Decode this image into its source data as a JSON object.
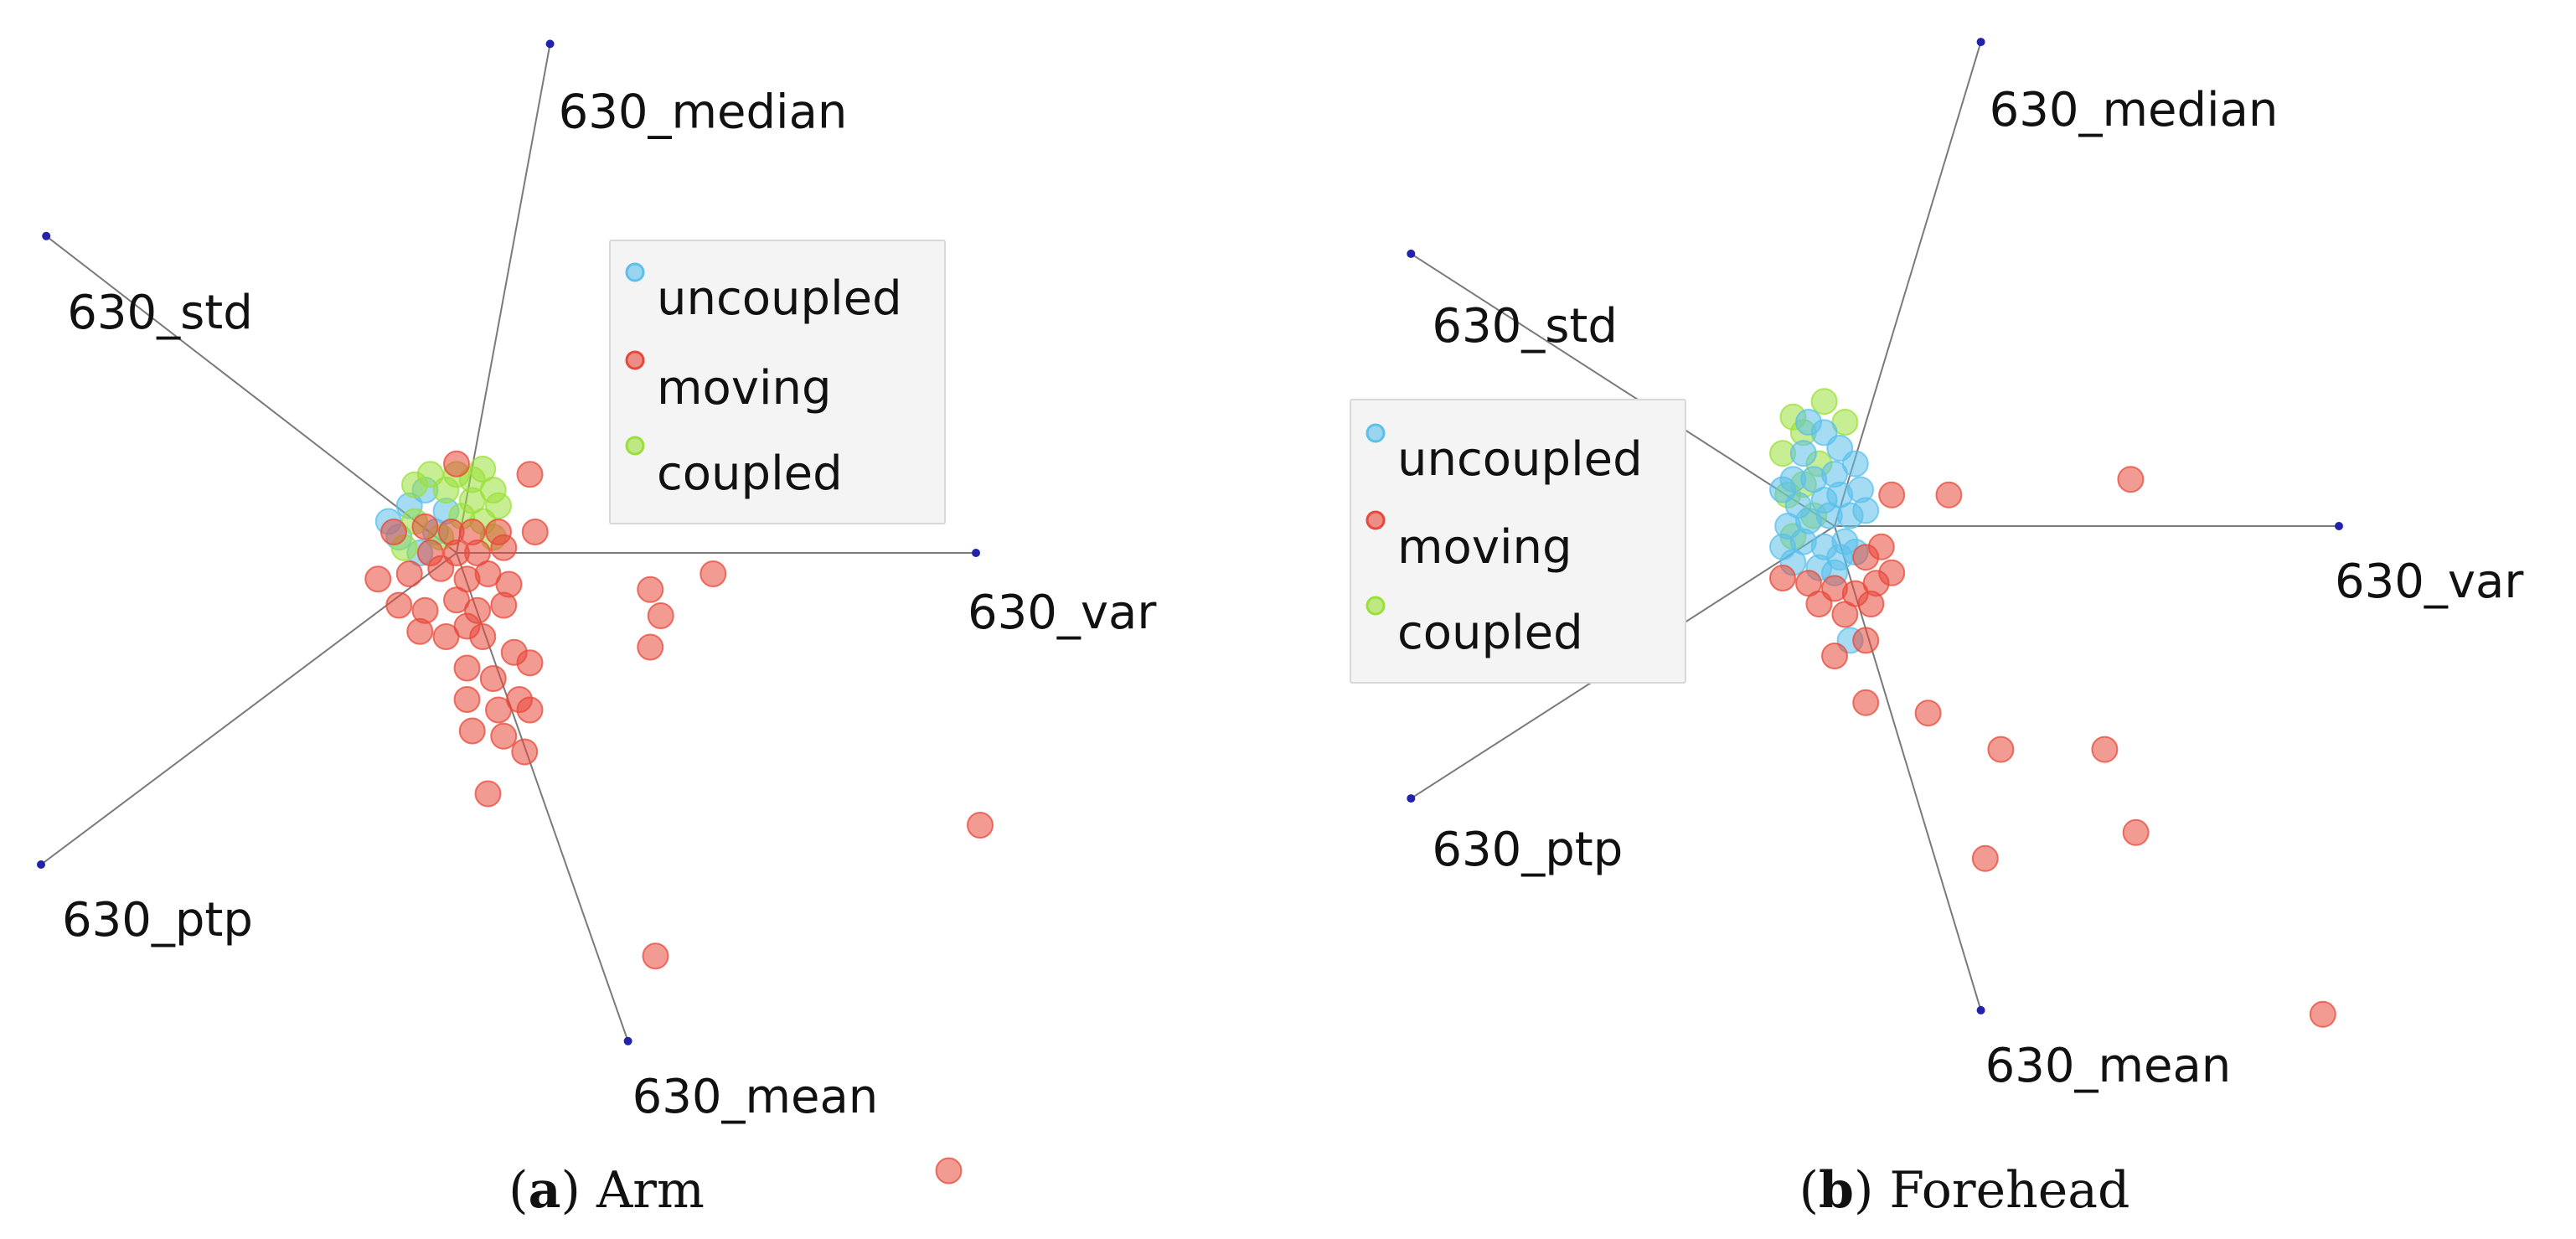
{
  "colors": {
    "uncoupled": "#5bc0eb",
    "moving": "#e8483a",
    "coupled": "#9be03a",
    "axis": "#7a7a7a",
    "axis_tip": "#2222aa",
    "legend_bg": "#f4f4f4",
    "legend_border": "#d8d8d8"
  },
  "chart_data": [
    {
      "type": "scatter",
      "title": "Arm",
      "caption_letter": "a",
      "plot_kind": "radviz",
      "axes": [
        {
          "label": "630_median",
          "direction": [
            0.18,
            -0.98
          ]
        },
        {
          "label": "630_std",
          "direction": [
            -0.79,
            -0.61
          ]
        },
        {
          "label": "630_var",
          "direction": [
            1.0,
            0.0
          ]
        },
        {
          "label": "630_ptp",
          "direction": [
            -0.8,
            0.6
          ]
        },
        {
          "label": "630_mean",
          "direction": [
            0.33,
            0.94
          ]
        }
      ],
      "legend": [
        "uncoupled",
        "moving",
        "coupled"
      ],
      "legend_position": "top-right",
      "series": [
        {
          "name": "uncoupled",
          "points": [
            [
              -0.13,
              0.06
            ],
            [
              -0.11,
              0.03
            ],
            [
              -0.09,
              0.09
            ],
            [
              -0.06,
              0.12
            ],
            [
              -0.04,
              0.04
            ],
            [
              -0.07,
              0.0
            ],
            [
              -0.02,
              0.08
            ]
          ]
        },
        {
          "name": "coupled",
          "points": [
            [
              -0.08,
              0.13
            ],
            [
              -0.05,
              0.15
            ],
            [
              0.0,
              0.15
            ],
            [
              0.03,
              0.14
            ],
            [
              0.05,
              0.16
            ],
            [
              0.07,
              0.12
            ],
            [
              0.08,
              0.09
            ],
            [
              0.03,
              0.1
            ],
            [
              -0.02,
              0.12
            ],
            [
              0.01,
              0.07
            ],
            [
              0.05,
              0.06
            ],
            [
              -0.1,
              0.01
            ],
            [
              -0.08,
              0.06
            ],
            [
              0.07,
              0.03
            ],
            [
              -0.03,
              0.03
            ]
          ]
        },
        {
          "name": "moving",
          "points": [
            [
              0.0,
              0.17
            ],
            [
              0.14,
              0.15
            ],
            [
              -0.12,
              0.04
            ],
            [
              -0.06,
              0.05
            ],
            [
              -0.01,
              0.04
            ],
            [
              0.03,
              0.04
            ],
            [
              0.08,
              0.04
            ],
            [
              0.15,
              0.04
            ],
            [
              -0.05,
              0.0
            ],
            [
              0.0,
              0.0
            ],
            [
              0.04,
              0.0
            ],
            [
              0.09,
              0.01
            ],
            [
              -0.15,
              -0.05
            ],
            [
              -0.09,
              -0.04
            ],
            [
              -0.03,
              -0.03
            ],
            [
              0.02,
              -0.05
            ],
            [
              0.06,
              -0.04
            ],
            [
              0.1,
              -0.06
            ],
            [
              -0.11,
              -0.1
            ],
            [
              -0.06,
              -0.11
            ],
            [
              0.0,
              -0.09
            ],
            [
              0.04,
              -0.11
            ],
            [
              0.09,
              -0.1
            ],
            [
              -0.07,
              -0.15
            ],
            [
              -0.02,
              -0.16
            ],
            [
              0.02,
              -0.14
            ],
            [
              0.05,
              -0.16
            ],
            [
              0.11,
              -0.19
            ],
            [
              0.14,
              -0.21
            ],
            [
              0.02,
              -0.22
            ],
            [
              0.07,
              -0.24
            ],
            [
              0.12,
              -0.28
            ],
            [
              0.02,
              -0.28
            ],
            [
              0.08,
              -0.3
            ],
            [
              0.14,
              -0.3
            ],
            [
              0.03,
              -0.34
            ],
            [
              0.09,
              -0.35
            ],
            [
              0.13,
              -0.38
            ],
            [
              0.06,
              -0.46
            ],
            [
              0.37,
              -0.07
            ],
            [
              0.39,
              -0.12
            ],
            [
              0.49,
              -0.04
            ],
            [
              0.37,
              -0.18
            ],
            [
              1.0,
              -0.52
            ],
            [
              0.38,
              -0.77
            ],
            [
              0.94,
              -1.18
            ]
          ]
        }
      ]
    },
    {
      "type": "scatter",
      "title": "Forehead",
      "caption_letter": "b",
      "plot_kind": "radviz",
      "axes": [
        {
          "label": "630_median",
          "direction": [
            0.29,
            -0.96
          ]
        },
        {
          "label": "630_std",
          "direction": [
            -0.84,
            -0.54
          ]
        },
        {
          "label": "630_var",
          "direction": [
            1.0,
            0.0
          ]
        },
        {
          "label": "630_ptp",
          "direction": [
            -0.84,
            0.54
          ]
        },
        {
          "label": "630_mean",
          "direction": [
            0.29,
            0.96
          ]
        }
      ],
      "legend": [
        "uncoupled",
        "moving",
        "coupled"
      ],
      "legend_position": "top-left",
      "series": [
        {
          "name": "coupled",
          "points": [
            [
              -0.08,
              0.21
            ],
            [
              -0.02,
              0.24
            ],
            [
              -0.06,
              0.18
            ],
            [
              -0.1,
              0.14
            ],
            [
              -0.09,
              0.06
            ],
            [
              -0.03,
              0.12
            ],
            [
              -0.08,
              -0.02
            ],
            [
              -0.06,
              0.08
            ],
            [
              0.02,
              0.2
            ],
            [
              -0.04,
              0.02
            ]
          ]
        },
        {
          "name": "uncoupled",
          "points": [
            [
              -0.06,
              0.14
            ],
            [
              -0.02,
              0.18
            ],
            [
              -0.05,
              0.2
            ],
            [
              0.01,
              0.15
            ],
            [
              -0.08,
              0.09
            ],
            [
              -0.04,
              0.09
            ],
            [
              0.0,
              0.1
            ],
            [
              0.04,
              0.12
            ],
            [
              -0.1,
              0.07
            ],
            [
              -0.07,
              0.04
            ],
            [
              -0.02,
              0.05
            ],
            [
              0.01,
              0.06
            ],
            [
              0.05,
              0.07
            ],
            [
              -0.09,
              0.0
            ],
            [
              -0.05,
              0.01
            ],
            [
              -0.01,
              0.02
            ],
            [
              0.03,
              0.02
            ],
            [
              0.06,
              0.03
            ],
            [
              -0.1,
              -0.04
            ],
            [
              -0.06,
              -0.03
            ],
            [
              -0.02,
              -0.04
            ],
            [
              0.02,
              -0.03
            ],
            [
              -0.08,
              -0.07
            ],
            [
              -0.03,
              -0.08
            ],
            [
              0.01,
              -0.06
            ],
            [
              0.0,
              -0.09
            ],
            [
              0.04,
              -0.05
            ],
            [
              0.03,
              -0.22
            ]
          ]
        },
        {
          "name": "moving",
          "points": [
            [
              0.11,
              0.06
            ],
            [
              0.22,
              0.06
            ],
            [
              0.57,
              0.09
            ],
            [
              0.09,
              -0.04
            ],
            [
              0.11,
              -0.09
            ],
            [
              0.06,
              -0.06
            ],
            [
              -0.1,
              -0.1
            ],
            [
              -0.05,
              -0.11
            ],
            [
              0.0,
              -0.12
            ],
            [
              0.04,
              -0.13
            ],
            [
              0.08,
              -0.11
            ],
            [
              -0.03,
              -0.15
            ],
            [
              0.02,
              -0.17
            ],
            [
              0.07,
              -0.15
            ],
            [
              0.06,
              -0.22
            ],
            [
              0.0,
              -0.25
            ],
            [
              0.06,
              -0.34
            ],
            [
              0.18,
              -0.36
            ],
            [
              0.32,
              -0.43
            ],
            [
              0.52,
              -0.43
            ],
            [
              0.58,
              -0.59
            ],
            [
              0.29,
              -0.64
            ],
            [
              0.94,
              -0.94
            ]
          ]
        }
      ]
    }
  ]
}
